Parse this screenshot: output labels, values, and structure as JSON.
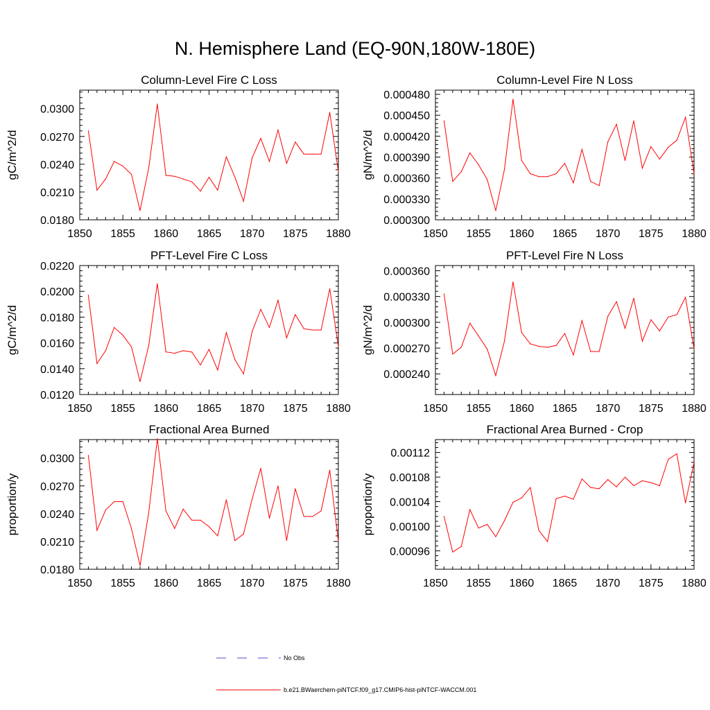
{
  "title": "N. Hemisphere Land (EQ-90N,180W-180E)",
  "colors": {
    "model": "#ff0000",
    "obs": "#4b4bd2",
    "frame": "#000000"
  },
  "legend": {
    "obs_label": "No Obs",
    "model_label": "b.e21.BWaerchem-piNTCF.f09_g17.CMIP6-hist-piNTCF-WACCM.001"
  },
  "chart_data": [
    {
      "type": "line",
      "title": "Column-Level Fire C Loss",
      "ylabel": "gC/m^2/d",
      "xlabel": "",
      "xlim": [
        1850,
        1880
      ],
      "ylim": [
        0.018,
        0.032
      ],
      "xticks": [
        "1850",
        "1855",
        "1860",
        "1865",
        "1870",
        "1875",
        "1880"
      ],
      "yticks": [
        "0.0180",
        "0.0210",
        "0.0240",
        "0.0270",
        "0.0300"
      ],
      "x": [
        1851,
        1852,
        1853,
        1854,
        1855,
        1856,
        1857,
        1858,
        1859,
        1860,
        1861,
        1862,
        1863,
        1864,
        1865,
        1866,
        1867,
        1868,
        1869,
        1870,
        1871,
        1872,
        1873,
        1874,
        1875,
        1876,
        1877,
        1878,
        1879,
        1880
      ],
      "series": [
        {
          "values": [
            0.0276,
            0.0212,
            0.0224,
            0.0243,
            0.0238,
            0.0229,
            0.019,
            0.0236,
            0.0305,
            0.0228,
            0.0227,
            0.0224,
            0.0221,
            0.0211,
            0.0226,
            0.0212,
            0.0248,
            0.0226,
            0.02,
            0.0247,
            0.0268,
            0.0243,
            0.0277,
            0.0241,
            0.0264,
            0.0251,
            0.0251,
            0.0251,
            0.0296,
            0.0232
          ]
        }
      ]
    },
    {
      "type": "line",
      "title": "Column-Level Fire N Loss",
      "ylabel": "gN/m^2/d",
      "xlabel": "",
      "xlim": [
        1850,
        1880
      ],
      "ylim": [
        0.0003,
        0.000486
      ],
      "xticks": [
        "1850",
        "1855",
        "1860",
        "1865",
        "1870",
        "1875",
        "1880"
      ],
      "yticks": [
        "0.000300",
        "0.000330",
        "0.000360",
        "0.000390",
        "0.000420",
        "0.000450",
        "0.000480"
      ],
      "x": [
        1851,
        1852,
        1853,
        1854,
        1855,
        1856,
        1857,
        1858,
        1859,
        1860,
        1861,
        1862,
        1863,
        1864,
        1865,
        1866,
        1867,
        1868,
        1869,
        1870,
        1871,
        1872,
        1873,
        1874,
        1875,
        1876,
        1877,
        1878,
        1879,
        1880
      ],
      "series": [
        {
          "values": [
            0.000442,
            0.000355,
            0.000369,
            0.000396,
            0.000379,
            0.000358,
            0.000313,
            0.000372,
            0.000473,
            0.000385,
            0.000366,
            0.000362,
            0.000362,
            0.000366,
            0.000381,
            0.000353,
            0.000401,
            0.000355,
            0.000349,
            0.000412,
            0.000437,
            0.000385,
            0.000442,
            0.000374,
            0.000405,
            0.000387,
            0.000404,
            0.000414,
            0.000447,
            0.000366
          ]
        }
      ]
    },
    {
      "type": "line",
      "title": "PFT-Level Fire C Loss",
      "ylabel": "gC/m^2/d",
      "xlabel": "",
      "xlim": [
        1850,
        1880
      ],
      "ylim": [
        0.012,
        0.022
      ],
      "xticks": [
        "1850",
        "1855",
        "1860",
        "1865",
        "1870",
        "1875",
        "1880"
      ],
      "yticks": [
        "0.0120",
        "0.0140",
        "0.0160",
        "0.0180",
        "0.0200",
        "0.0220"
      ],
      "x": [
        1851,
        1852,
        1853,
        1854,
        1855,
        1856,
        1857,
        1858,
        1859,
        1860,
        1861,
        1862,
        1863,
        1864,
        1865,
        1866,
        1867,
        1868,
        1869,
        1870,
        1871,
        1872,
        1873,
        1874,
        1875,
        1876,
        1877,
        1878,
        1879,
        1880
      ],
      "series": [
        {
          "values": [
            0.0197,
            0.0144,
            0.0154,
            0.0172,
            0.0166,
            0.0157,
            0.013,
            0.0158,
            0.0206,
            0.0153,
            0.0152,
            0.0154,
            0.0153,
            0.0143,
            0.0155,
            0.0139,
            0.0168,
            0.0147,
            0.0136,
            0.0169,
            0.0186,
            0.0172,
            0.0193,
            0.0164,
            0.0182,
            0.0171,
            0.017,
            0.017,
            0.0202,
            0.0157
          ]
        }
      ]
    },
    {
      "type": "line",
      "title": "PFT-Level Fire N Loss",
      "ylabel": "gN/m^2/d",
      "xlabel": "",
      "xlim": [
        1850,
        1880
      ],
      "ylim": [
        0.000216,
        0.000366
      ],
      "xticks": [
        "1850",
        "1855",
        "1860",
        "1865",
        "1870",
        "1875",
        "1880"
      ],
      "yticks": [
        "0.000240",
        "0.000270",
        "0.000300",
        "0.000330",
        "0.000360"
      ],
      "x": [
        1851,
        1852,
        1853,
        1854,
        1855,
        1856,
        1857,
        1858,
        1859,
        1860,
        1861,
        1862,
        1863,
        1864,
        1865,
        1866,
        1867,
        1868,
        1869,
        1870,
        1871,
        1872,
        1873,
        1874,
        1875,
        1876,
        1877,
        1878,
        1879,
        1880
      ],
      "series": [
        {
          "values": [
            0.000333,
            0.000263,
            0.000271,
            0.000299,
            0.000284,
            0.000269,
            0.000238,
            0.000278,
            0.000347,
            0.000288,
            0.000275,
            0.000272,
            0.000271,
            0.000273,
            0.000287,
            0.000262,
            0.000302,
            0.000266,
            0.000266,
            0.000307,
            0.000324,
            0.000293,
            0.000328,
            0.000278,
            0.000303,
            0.00029,
            0.000306,
            0.000309,
            0.000329,
            0.000269
          ]
        }
      ]
    },
    {
      "type": "line",
      "title": "Fractional Area Burned",
      "ylabel": "proportion/y",
      "xlabel": "",
      "xlim": [
        1850,
        1880
      ],
      "ylim": [
        0.018,
        0.032
      ],
      "xticks": [
        "1850",
        "1855",
        "1860",
        "1865",
        "1870",
        "1875",
        "1880"
      ],
      "yticks": [
        "0.0180",
        "0.0210",
        "0.0240",
        "0.0270",
        "0.0300"
      ],
      "x": [
        1851,
        1852,
        1853,
        1854,
        1855,
        1856,
        1857,
        1858,
        1859,
        1860,
        1861,
        1862,
        1863,
        1864,
        1865,
        1866,
        1867,
        1868,
        1869,
        1870,
        1871,
        1872,
        1873,
        1874,
        1875,
        1876,
        1877,
        1878,
        1879,
        1880
      ],
      "series": [
        {
          "values": [
            0.0303,
            0.0222,
            0.0244,
            0.0253,
            0.0253,
            0.0224,
            0.0184,
            0.0241,
            0.0321,
            0.0243,
            0.0224,
            0.0245,
            0.0233,
            0.0233,
            0.0226,
            0.0216,
            0.0255,
            0.0211,
            0.0218,
            0.0256,
            0.0289,
            0.0235,
            0.027,
            0.0211,
            0.0267,
            0.0237,
            0.0237,
            0.0243,
            0.0287,
            0.021
          ]
        }
      ]
    },
    {
      "type": "line",
      "title": "Fractional Area Burned - Crop",
      "ylabel": "proportion/y",
      "xlabel": "",
      "xlim": [
        1850,
        1880
      ],
      "ylim": [
        0.00093,
        0.001141
      ],
      "xticks": [
        "1850",
        "1855",
        "1860",
        "1865",
        "1870",
        "1875",
        "1880"
      ],
      "yticks": [
        "0.00096",
        "0.00100",
        "0.00104",
        "0.00108",
        "0.00112"
      ],
      "x": [
        1851,
        1852,
        1853,
        1854,
        1855,
        1856,
        1857,
        1858,
        1859,
        1860,
        1861,
        1862,
        1863,
        1864,
        1865,
        1866,
        1867,
        1868,
        1869,
        1870,
        1871,
        1872,
        1873,
        1874,
        1875,
        1876,
        1877,
        1878,
        1879,
        1880
      ],
      "series": [
        {
          "values": [
            0.001016,
            0.000958,
            0.000967,
            0.001027,
            0.000997,
            0.001003,
            0.000983,
            0.001009,
            0.001039,
            0.001046,
            0.001063,
            0.000993,
            0.000975,
            0.001045,
            0.001049,
            0.001044,
            0.001077,
            0.001063,
            0.001061,
            0.001076,
            0.001064,
            0.00108,
            0.001066,
            0.001074,
            0.001071,
            0.001066,
            0.001109,
            0.001118,
            0.001038,
            0.001104
          ]
        }
      ]
    }
  ]
}
